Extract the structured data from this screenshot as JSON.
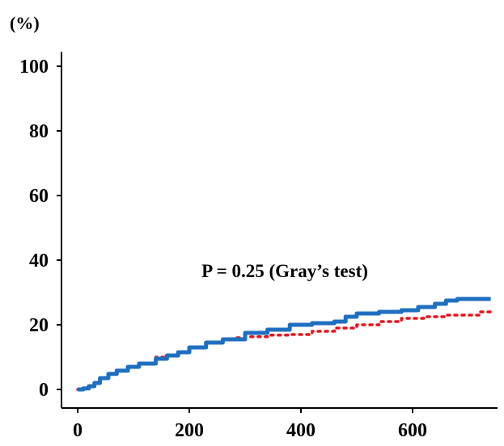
{
  "chart_data": {
    "type": "line",
    "ylabel": "(%)",
    "xlabel": "",
    "xlim": [
      0,
      750
    ],
    "ylim": [
      0,
      100
    ],
    "x_ticks": [
      0,
      200,
      400,
      600
    ],
    "y_ticks": [
      0,
      20,
      40,
      60,
      80,
      100
    ],
    "annotation": "P = 0.25 (Gray’s test)",
    "grid": false,
    "series": [
      {
        "color": "#1f6fc0",
        "style": "solid-step",
        "points": [
          [
            0,
            0
          ],
          [
            10,
            0.3
          ],
          [
            20,
            1
          ],
          [
            30,
            2
          ],
          [
            40,
            3.5
          ],
          [
            55,
            4.8
          ],
          [
            70,
            5.8
          ],
          [
            90,
            7
          ],
          [
            110,
            8
          ],
          [
            140,
            9.5
          ],
          [
            160,
            10.5
          ],
          [
            180,
            11.5
          ],
          [
            200,
            13
          ],
          [
            230,
            14.5
          ],
          [
            260,
            15.5
          ],
          [
            300,
            17.5
          ],
          [
            340,
            18.5
          ],
          [
            380,
            20
          ],
          [
            420,
            20.5
          ],
          [
            460,
            21
          ],
          [
            480,
            22.5
          ],
          [
            500,
            23.5
          ],
          [
            540,
            24
          ],
          [
            580,
            24.5
          ],
          [
            610,
            25.5
          ],
          [
            640,
            26.5
          ],
          [
            660,
            27.5
          ],
          [
            680,
            28
          ],
          [
            740,
            28
          ]
        ]
      },
      {
        "color": "#e8141c",
        "style": "dotted-step",
        "points": [
          [
            0,
            0
          ],
          [
            10,
            0.3
          ],
          [
            20,
            1
          ],
          [
            30,
            2
          ],
          [
            40,
            3.5
          ],
          [
            55,
            4.8
          ],
          [
            70,
            5.8
          ],
          [
            90,
            7
          ],
          [
            110,
            8
          ],
          [
            140,
            10
          ],
          [
            160,
            10.5
          ],
          [
            180,
            11.5
          ],
          [
            200,
            13
          ],
          [
            230,
            14.5
          ],
          [
            260,
            15.5
          ],
          [
            280,
            16
          ],
          [
            300,
            16.3
          ],
          [
            340,
            16.8
          ],
          [
            380,
            17
          ],
          [
            420,
            18
          ],
          [
            460,
            19
          ],
          [
            500,
            20
          ],
          [
            540,
            21
          ],
          [
            580,
            22
          ],
          [
            620,
            22.5
          ],
          [
            660,
            23
          ],
          [
            700,
            23
          ],
          [
            720,
            24
          ],
          [
            740,
            24.5
          ]
        ]
      }
    ]
  }
}
